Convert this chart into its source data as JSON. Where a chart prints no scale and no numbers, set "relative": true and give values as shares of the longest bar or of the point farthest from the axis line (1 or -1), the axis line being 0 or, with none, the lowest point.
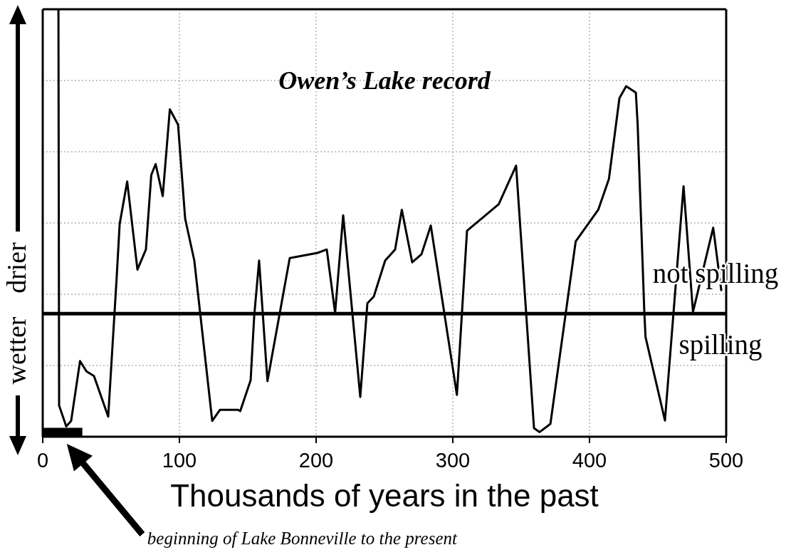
{
  "chart_data": {
    "type": "line",
    "title": "Owen’s Lake record",
    "xlabel": "Thousands of years in the past",
    "series": [
      {
        "x": [
          11.5,
          12.0,
          17.2,
          20.8,
          27.3,
          32.0,
          37.5,
          47.9,
          54.0,
          56.3,
          61.8,
          69.3,
          75.5,
          79.4,
          82.6,
          87.8,
          93.0,
          99.0,
          104.2,
          110.9,
          124.0,
          129.7,
          142.7,
          144.5,
          152.1,
          154.7,
          158.3,
          164.4,
          180.7,
          201.0,
          207.8,
          213.9,
          219.8,
          232.3,
          237.5,
          242.2,
          250.5,
          257.8,
          262.7,
          270.3,
          277.1,
          283.9,
          303.0,
          310.4,
          333.6,
          346.3,
          359.4,
          363.5,
          371.4,
          389.9,
          406.4,
          414.2,
          421.9,
          426.8,
          433.9,
          435.2,
          440.1,
          441.0,
          455.2,
          468.8,
          475.7,
          490.5,
          496.4
        ],
        "values": [
          1.0,
          0.073,
          0.024,
          0.037,
          0.177,
          0.153,
          0.142,
          0.047,
          0.367,
          0.498,
          0.597,
          0.391,
          0.438,
          0.612,
          0.638,
          0.563,
          0.766,
          0.73,
          0.51,
          0.412,
          0.037,
          0.063,
          0.063,
          0.06,
          0.132,
          0.282,
          0.412,
          0.13,
          0.418,
          0.43,
          0.438,
          0.29,
          0.518,
          0.093,
          0.312,
          0.328,
          0.412,
          0.438,
          0.531,
          0.408,
          0.427,
          0.494,
          0.098,
          0.482,
          0.544,
          0.634,
          0.02,
          0.011,
          0.03,
          0.457,
          0.531,
          0.603,
          0.792,
          0.82,
          0.805,
          0.733,
          0.292,
          0.233,
          0.038,
          0.586,
          0.292,
          0.489,
          0.343
        ],
        "color": "#000000"
      },
      {
        "type": "area",
        "x": [
          0,
          29
        ],
        "values": [
          0.02,
          0.02
        ],
        "color": "#000000"
      }
    ],
    "relative": true,
    "xlim": [
      0,
      500
    ],
    "xticks": [
      0,
      100,
      200,
      300,
      400,
      500
    ],
    "grid": true,
    "ref_lines": [
      {
        "axis": "y",
        "value": 0.288,
        "color": "#000000"
      }
    ],
    "annotations": [
      "not spilling",
      "spilling",
      "drier",
      "wetter",
      "beginning of Lake Bonneville to the present"
    ]
  }
}
